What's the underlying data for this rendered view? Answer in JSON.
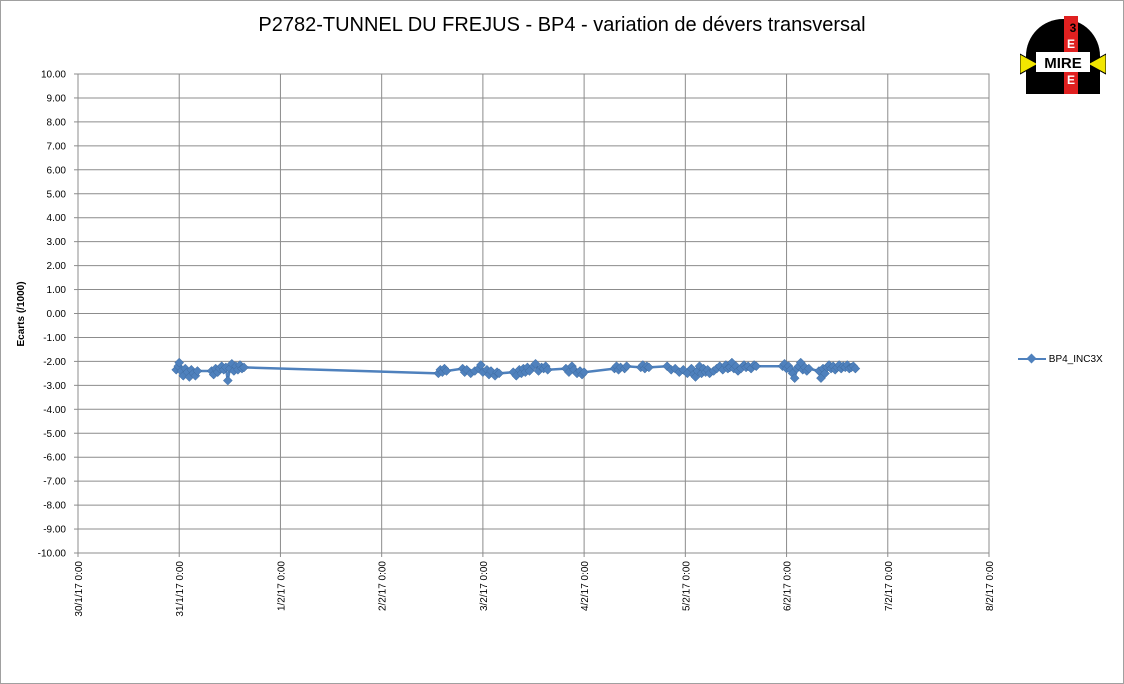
{
  "chart_data": {
    "type": "line",
    "title": "P2782-TUNNEL DU FREJUS - BP4 - variation de dévers transversal",
    "ylabel": "Ecarts (/1000)",
    "xlabel": "",
    "ylim": [
      -10,
      10
    ],
    "ytick_step": 1,
    "x_tick_labels": [
      "30/1/17 0:00",
      "31/1/17 0:00",
      "1/2/17 0:00",
      "2/2/17 0:00",
      "3/2/17 0:00",
      "4/2/17 0:00",
      "5/2/17 0:00",
      "6/2/17 0:00",
      "7/2/17 0:00",
      "8/2/17 0:00"
    ],
    "x_unit": "days since 30/1/17 0:00 axis start",
    "grid": true,
    "legend_position": "right",
    "series": [
      {
        "name": "BP4_INC3X",
        "color": "#4f81bd",
        "marker": "diamond",
        "points": [
          [
            0.97,
            -2.35
          ],
          [
            0.99,
            -2.2
          ],
          [
            1.0,
            -2.05
          ],
          [
            1.02,
            -2.4
          ],
          [
            1.04,
            -2.6
          ],
          [
            1.06,
            -2.3
          ],
          [
            1.08,
            -2.45
          ],
          [
            1.1,
            -2.65
          ],
          [
            1.12,
            -2.35
          ],
          [
            1.14,
            -2.5
          ],
          [
            1.16,
            -2.6
          ],
          [
            1.18,
            -2.4
          ],
          [
            1.32,
            -2.4
          ],
          [
            1.34,
            -2.55
          ],
          [
            1.36,
            -2.3
          ],
          [
            1.38,
            -2.45
          ],
          [
            1.4,
            -2.3
          ],
          [
            1.42,
            -2.2
          ],
          [
            1.44,
            -2.35
          ],
          [
            1.46,
            -2.25
          ],
          [
            1.48,
            -2.8
          ],
          [
            1.5,
            -2.3
          ],
          [
            1.52,
            -2.1
          ],
          [
            1.54,
            -2.4
          ],
          [
            1.56,
            -2.2
          ],
          [
            1.58,
            -2.35
          ],
          [
            1.6,
            -2.15
          ],
          [
            1.62,
            -2.3
          ],
          [
            1.64,
            -2.25
          ],
          [
            3.56,
            -2.5
          ],
          [
            3.58,
            -2.35
          ],
          [
            3.6,
            -2.45
          ],
          [
            3.62,
            -2.3
          ],
          [
            3.64,
            -2.4
          ],
          [
            3.8,
            -2.3
          ],
          [
            3.82,
            -2.45
          ],
          [
            3.84,
            -2.35
          ],
          [
            3.88,
            -2.5
          ],
          [
            3.92,
            -2.4
          ],
          [
            3.96,
            -2.3
          ],
          [
            3.98,
            -2.15
          ],
          [
            4.0,
            -2.45
          ],
          [
            4.04,
            -2.35
          ],
          [
            4.06,
            -2.55
          ],
          [
            4.08,
            -2.4
          ],
          [
            4.12,
            -2.6
          ],
          [
            4.14,
            -2.45
          ],
          [
            4.16,
            -2.5
          ],
          [
            4.3,
            -2.45
          ],
          [
            4.33,
            -2.6
          ],
          [
            4.36,
            -2.35
          ],
          [
            4.38,
            -2.5
          ],
          [
            4.4,
            -2.3
          ],
          [
            4.42,
            -2.45
          ],
          [
            4.44,
            -2.25
          ],
          [
            4.46,
            -2.4
          ],
          [
            4.5,
            -2.2
          ],
          [
            4.52,
            -2.1
          ],
          [
            4.55,
            -2.4
          ],
          [
            4.58,
            -2.25
          ],
          [
            4.6,
            -2.3
          ],
          [
            4.62,
            -2.2
          ],
          [
            4.64,
            -2.35
          ],
          [
            4.82,
            -2.3
          ],
          [
            4.85,
            -2.45
          ],
          [
            4.88,
            -2.2
          ],
          [
            4.9,
            -2.35
          ],
          [
            4.93,
            -2.5
          ],
          [
            4.96,
            -2.4
          ],
          [
            4.98,
            -2.55
          ],
          [
            5.0,
            -2.45
          ],
          [
            5.3,
            -2.3
          ],
          [
            5.32,
            -2.2
          ],
          [
            5.34,
            -2.35
          ],
          [
            5.36,
            -2.25
          ],
          [
            5.4,
            -2.3
          ],
          [
            5.42,
            -2.2
          ],
          [
            5.56,
            -2.25
          ],
          [
            5.58,
            -2.15
          ],
          [
            5.6,
            -2.3
          ],
          [
            5.62,
            -2.2
          ],
          [
            5.64,
            -2.25
          ],
          [
            5.82,
            -2.2
          ],
          [
            5.86,
            -2.35
          ],
          [
            5.9,
            -2.3
          ],
          [
            5.94,
            -2.45
          ],
          [
            5.98,
            -2.35
          ],
          [
            6.02,
            -2.5
          ],
          [
            6.06,
            -2.3
          ],
          [
            6.08,
            -2.55
          ],
          [
            6.1,
            -2.65
          ],
          [
            6.12,
            -2.4
          ],
          [
            6.14,
            -2.2
          ],
          [
            6.16,
            -2.5
          ],
          [
            6.18,
            -2.3
          ],
          [
            6.2,
            -2.45
          ],
          [
            6.22,
            -2.35
          ],
          [
            6.24,
            -2.5
          ],
          [
            6.28,
            -2.4
          ],
          [
            6.31,
            -2.3
          ],
          [
            6.34,
            -2.2
          ],
          [
            6.37,
            -2.35
          ],
          [
            6.4,
            -2.15
          ],
          [
            6.42,
            -2.3
          ],
          [
            6.44,
            -2.25
          ],
          [
            6.46,
            -2.05
          ],
          [
            6.48,
            -2.3
          ],
          [
            6.5,
            -2.2
          ],
          [
            6.52,
            -2.4
          ],
          [
            6.55,
            -2.3
          ],
          [
            6.58,
            -2.15
          ],
          [
            6.6,
            -2.25
          ],
          [
            6.62,
            -2.2
          ],
          [
            6.65,
            -2.3
          ],
          [
            6.68,
            -2.15
          ],
          [
            6.7,
            -2.2
          ],
          [
            6.96,
            -2.2
          ],
          [
            6.98,
            -2.1
          ],
          [
            7.0,
            -2.3
          ],
          [
            7.02,
            -2.2
          ],
          [
            7.04,
            -2.35
          ],
          [
            7.06,
            -2.5
          ],
          [
            7.08,
            -2.7
          ],
          [
            7.1,
            -2.3
          ],
          [
            7.12,
            -2.2
          ],
          [
            7.14,
            -2.05
          ],
          [
            7.16,
            -2.35
          ],
          [
            7.18,
            -2.25
          ],
          [
            7.2,
            -2.4
          ],
          [
            7.22,
            -2.3
          ],
          [
            7.32,
            -2.4
          ],
          [
            7.34,
            -2.7
          ],
          [
            7.36,
            -2.3
          ],
          [
            7.38,
            -2.5
          ],
          [
            7.4,
            -2.25
          ],
          [
            7.42,
            -2.15
          ],
          [
            7.44,
            -2.3
          ],
          [
            7.46,
            -2.2
          ],
          [
            7.48,
            -2.35
          ],
          [
            7.5,
            -2.25
          ],
          [
            7.52,
            -2.15
          ],
          [
            7.54,
            -2.3
          ],
          [
            7.56,
            -2.2
          ],
          [
            7.58,
            -2.25
          ],
          [
            7.6,
            -2.15
          ],
          [
            7.62,
            -2.3
          ],
          [
            7.64,
            -2.25
          ],
          [
            7.66,
            -2.2
          ],
          [
            7.68,
            -2.3
          ]
        ]
      }
    ]
  },
  "legend": {
    "label": "BP4_INC3X"
  },
  "logo": {
    "text": "MIRE",
    "letters": [
      "3",
      "E",
      "E",
      "E"
    ]
  }
}
